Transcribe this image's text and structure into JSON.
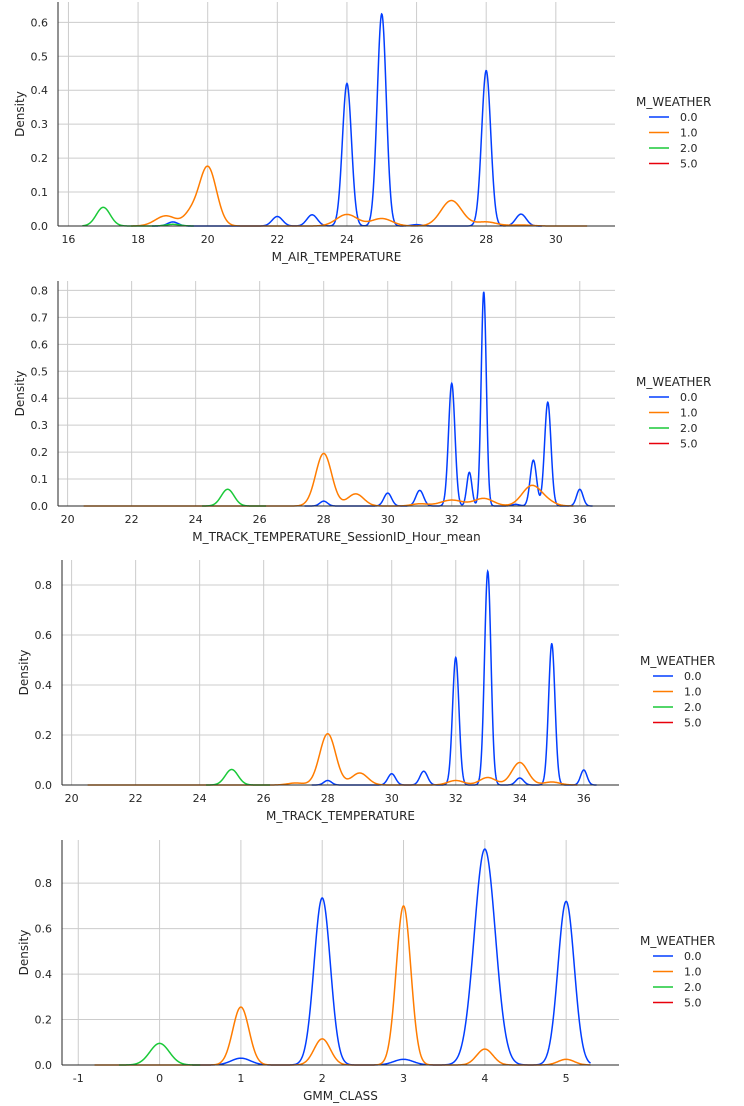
{
  "colors": {
    "0.0": "#023eff",
    "1.0": "#ff7c00",
    "2.0": "#1ac938",
    "5.0": "#e8000b",
    "grid": "#cccccc",
    "axis": "#262626"
  },
  "chart_data": [
    {
      "type": "line",
      "xlabel": "M_AIR_TEMPERATURE",
      "ylabel": "Density",
      "xlim": [
        15.7,
        31.7
      ],
      "ylim": [
        0,
        0.66
      ],
      "xticks": [
        16,
        18,
        20,
        22,
        24,
        26,
        28,
        30
      ],
      "yticks": [
        0.0,
        0.1,
        0.2,
        0.3,
        0.4,
        0.5,
        0.6
      ],
      "legend": {
        "title": "M_WEATHER",
        "placement": "right",
        "entries": [
          "0.0",
          "1.0",
          "2.0",
          "5.0"
        ]
      },
      "series": [
        {
          "name": "0.0",
          "x_range": [
            18.4,
            29.6
          ],
          "peaks": [
            [
              19,
              0.012,
              0.15
            ],
            [
              22,
              0.028,
              0.15
            ],
            [
              23,
              0.033,
              0.15
            ],
            [
              24,
              0.42,
              0.13
            ],
            [
              25,
              0.625,
              0.13
            ],
            [
              26,
              0.004,
              0.15
            ],
            [
              28,
              0.458,
              0.13
            ],
            [
              29,
              0.035,
              0.15
            ]
          ]
        },
        {
          "name": "1.0",
          "x_range": [
            17.8,
            30.9
          ],
          "peaks": [
            [
              18.8,
              0.03,
              0.3
            ],
            [
              19.5,
              0.03,
              0.2
            ],
            [
              20,
              0.175,
              0.25
            ],
            [
              24,
              0.034,
              0.3
            ],
            [
              25,
              0.022,
              0.3
            ],
            [
              27,
              0.075,
              0.3
            ],
            [
              28,
              0.012,
              0.3
            ],
            [
              29,
              0.003,
              0.3
            ]
          ]
        },
        {
          "name": "2.0",
          "x_range": [
            16.4,
            19.6
          ],
          "peaks": [
            [
              17,
              0.055,
              0.2
            ],
            [
              19,
              0.005,
              0.2
            ]
          ]
        },
        {
          "name": "5.0",
          "x_range": [],
          "peaks": []
        }
      ]
    },
    {
      "type": "line",
      "xlabel": "M_TRACK_TEMPERATURE_SessionID_Hour_mean",
      "ylabel": "Density",
      "xlim": [
        19.7,
        37.1
      ],
      "ylim": [
        0,
        0.835
      ],
      "xticks": [
        20,
        22,
        24,
        26,
        28,
        30,
        32,
        34,
        36
      ],
      "yticks": [
        0.0,
        0.1,
        0.2,
        0.3,
        0.4,
        0.5,
        0.6,
        0.7,
        0.8
      ],
      "legend": {
        "title": "M_WEATHER",
        "placement": "right",
        "entries": [
          "0.0",
          "1.0",
          "2.0",
          "5.0"
        ]
      },
      "series": [
        {
          "name": "0.0",
          "x_range": [
            27.4,
            36.4
          ],
          "peaks": [
            [
              28,
              0.018,
              0.12
            ],
            [
              30,
              0.048,
              0.12
            ],
            [
              31,
              0.058,
              0.12
            ],
            [
              32,
              0.455,
              0.1
            ],
            [
              32.55,
              0.125,
              0.08
            ],
            [
              33,
              0.795,
              0.08
            ],
            [
              34,
              0.006,
              0.12
            ],
            [
              34.55,
              0.17,
              0.1
            ],
            [
              35,
              0.385,
              0.1
            ],
            [
              36,
              0.062,
              0.1
            ]
          ]
        },
        {
          "name": "1.0",
          "x_range": [
            20.5,
            35.8
          ],
          "peaks": [
            [
              28,
              0.195,
              0.25
            ],
            [
              29,
              0.045,
              0.25
            ],
            [
              31,
              0.008,
              0.25
            ],
            [
              32,
              0.022,
              0.35
            ],
            [
              33,
              0.028,
              0.3
            ],
            [
              34.5,
              0.075,
              0.3
            ],
            [
              35,
              0.012,
              0.25
            ]
          ]
        },
        {
          "name": "2.0",
          "x_range": [
            24.2,
            26.2
          ],
          "peaks": [
            [
              25,
              0.062,
              0.2
            ]
          ]
        },
        {
          "name": "5.0",
          "x_range": [],
          "peaks": []
        }
      ]
    },
    {
      "type": "line",
      "xlabel": "M_TRACK_TEMPERATURE",
      "ylabel": "Density",
      "xlim": [
        19.7,
        37.1
      ],
      "ylim": [
        0,
        0.9
      ],
      "xticks": [
        20,
        22,
        24,
        26,
        28,
        30,
        32,
        34,
        36
      ],
      "yticks": [
        0.0,
        0.2,
        0.4,
        0.6,
        0.8
      ],
      "legend": {
        "title": "M_WEATHER",
        "placement": "right",
        "entries": [
          "0.0",
          "1.0",
          "2.0",
          "5.0"
        ]
      },
      "series": [
        {
          "name": "0.0",
          "x_range": [
            27.5,
            36.4
          ],
          "peaks": [
            [
              28,
              0.018,
              0.12
            ],
            [
              30,
              0.045,
              0.12
            ],
            [
              31,
              0.055,
              0.12
            ],
            [
              32,
              0.51,
              0.1
            ],
            [
              33,
              0.855,
              0.1
            ],
            [
              34,
              0.028,
              0.12
            ],
            [
              35,
              0.565,
              0.1
            ],
            [
              36,
              0.06,
              0.1
            ]
          ]
        },
        {
          "name": "1.0",
          "x_range": [
            20.5,
            35.8
          ],
          "peaks": [
            [
              27,
              0.008,
              0.25
            ],
            [
              28,
              0.205,
              0.25
            ],
            [
              29,
              0.048,
              0.25
            ],
            [
              32,
              0.018,
              0.25
            ],
            [
              33,
              0.03,
              0.25
            ],
            [
              34,
              0.09,
              0.25
            ],
            [
              35,
              0.012,
              0.25
            ]
          ]
        },
        {
          "name": "2.0",
          "x_range": [
            24.2,
            26.2
          ],
          "peaks": [
            [
              25,
              0.062,
              0.2
            ]
          ]
        },
        {
          "name": "5.0",
          "x_range": [],
          "peaks": []
        }
      ]
    },
    {
      "type": "line",
      "xlabel": "GMM_CLASS",
      "ylabel": "Density",
      "xlim": [
        -1.2,
        5.65
      ],
      "ylim": [
        0,
        0.99
      ],
      "xticks": [
        -1,
        0,
        1,
        2,
        3,
        4,
        5
      ],
      "yticks": [
        0.0,
        0.2,
        0.4,
        0.6,
        0.8
      ],
      "legend": {
        "title": "M_WEATHER",
        "placement": "right",
        "entries": [
          "0.0",
          "1.0",
          "2.0",
          "5.0"
        ]
      },
      "series": [
        {
          "name": "0.0",
          "x_range": [
            0.4,
            5.3
          ],
          "peaks": [
            [
              1,
              0.03,
              0.12
            ],
            [
              2,
              0.735,
              0.1
            ],
            [
              3,
              0.025,
              0.12
            ],
            [
              4,
              0.95,
              0.13
            ],
            [
              5,
              0.72,
              0.1
            ]
          ]
        },
        {
          "name": "1.0",
          "x_range": [
            -0.8,
            5.3
          ],
          "peaks": [
            [
              1,
              0.255,
              0.1
            ],
            [
              2,
              0.115,
              0.1
            ],
            [
              3,
              0.7,
              0.09
            ],
            [
              4,
              0.07,
              0.1
            ],
            [
              5,
              0.025,
              0.1
            ]
          ]
        },
        {
          "name": "2.0",
          "x_range": [
            -0.5,
            0.5
          ],
          "peaks": [
            [
              0,
              0.095,
              0.12
            ]
          ]
        },
        {
          "name": "5.0",
          "x_range": [],
          "peaks": []
        }
      ]
    }
  ]
}
